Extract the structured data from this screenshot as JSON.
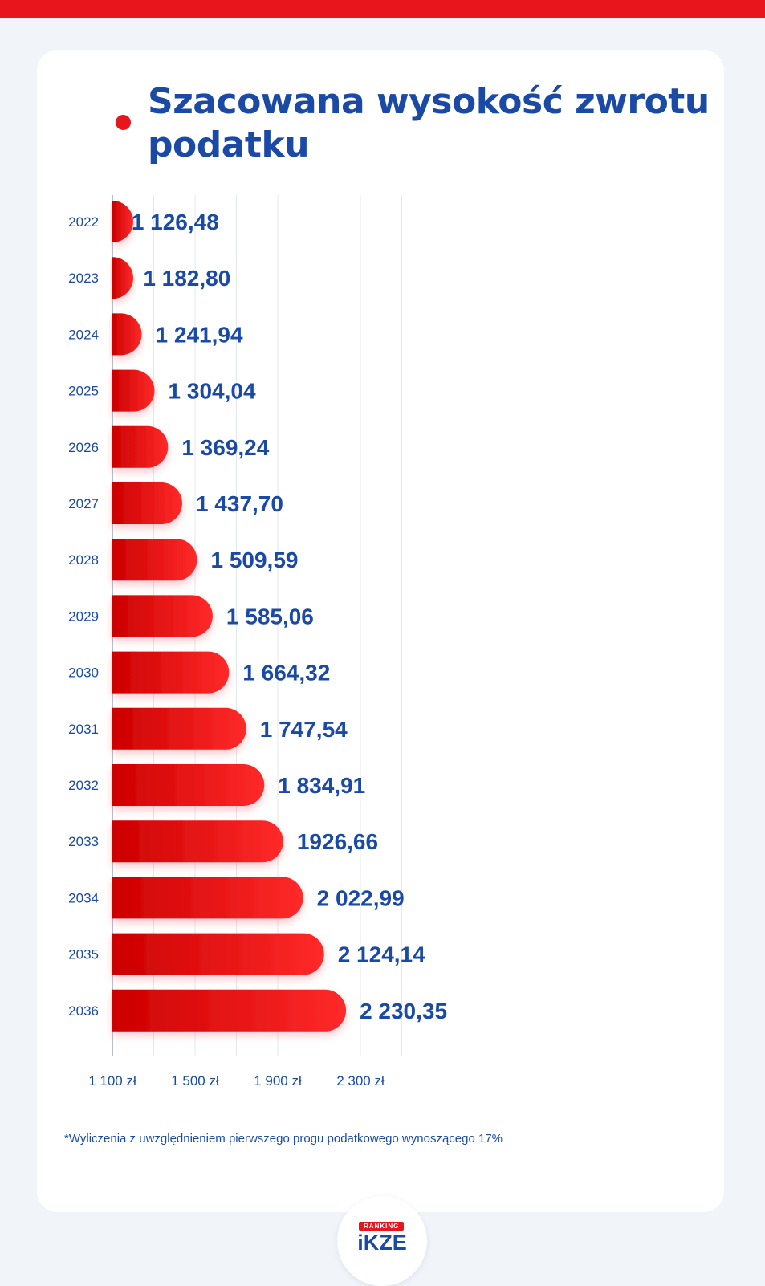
{
  "title": "Szacowana wysokość zwrotu podatku",
  "footnote": "*Wyliczenia z uwzględnieniem pierwszego progu podatkowego wynoszącego 17%",
  "logo": {
    "badge": "RANKING",
    "text": "iKZE"
  },
  "colors": {
    "accent": "#e8161c",
    "bar_dark": "#cc0000",
    "bar_light": "#ff2a2a",
    "text": "#1a4aa6",
    "background": "#f1f4f9"
  },
  "chart_data": {
    "type": "bar",
    "orientation": "horizontal",
    "categories": [
      "2022",
      "2023",
      "2024",
      "2025",
      "2026",
      "2027",
      "2028",
      "2029",
      "2030",
      "2031",
      "2032",
      "2033",
      "2034",
      "2035",
      "2036"
    ],
    "values": [
      1126.48,
      1182.8,
      1241.94,
      1304.04,
      1369.24,
      1437.7,
      1509.59,
      1585.06,
      1664.32,
      1747.54,
      1834.91,
      1926.66,
      2022.99,
      2124.14,
      2230.35
    ],
    "value_labels": [
      "1 126,48",
      "1 182,80",
      "1 241,94",
      "1 304,04",
      "1 369,24",
      "1 437,70",
      "1 509,59",
      "1 585,06",
      "1 664,32",
      "1 747,54",
      "1 834,91",
      "1926,66",
      "2 022,99",
      "2 124,14",
      "2 230,35"
    ],
    "xlim": [
      1100,
      2500
    ],
    "tick_values": [
      1100,
      1500,
      1900,
      2300
    ],
    "tick_labels": [
      "1 100 zł",
      "1 500 zł",
      "1 900 zł",
      "2 300 zł"
    ],
    "grid_values": [
      1300,
      1500,
      1700,
      1900,
      2100,
      2300,
      2500
    ],
    "grid": true,
    "title": "Szacowana wysokość zwrotu podatku",
    "xlabel": "",
    "ylabel": ""
  }
}
